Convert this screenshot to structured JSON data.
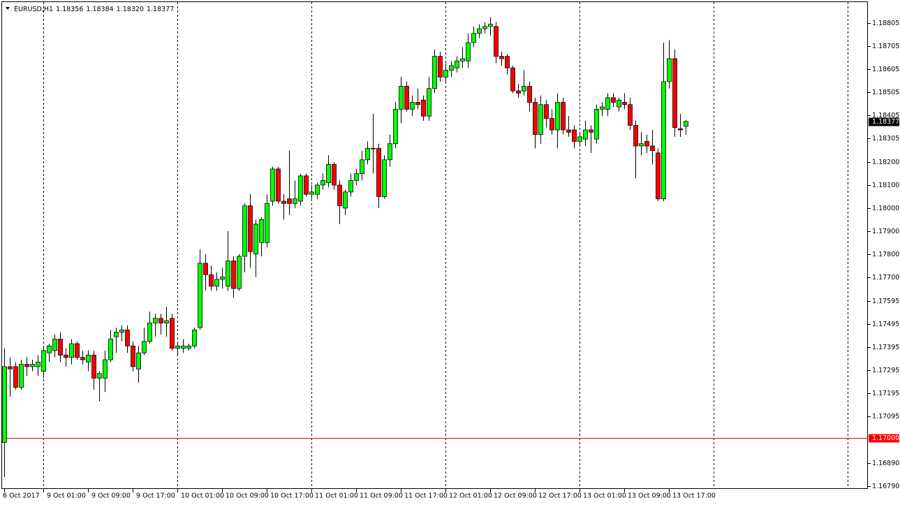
{
  "chart_data": {
    "type": "candlestick",
    "symbol": "EURUSD,H1",
    "header_values": [
      "1.18356",
      "1.18384",
      "1.18320",
      "1.18377"
    ],
    "categories": [
      "6 Oct 2017",
      null,
      null,
      null,
      null,
      null,
      null,
      "9 Oct 01:00",
      null,
      null,
      null,
      null,
      null,
      null,
      null,
      "9 Oct 09:00",
      null,
      null,
      null,
      null,
      null,
      null,
      null,
      "9 Oct 17:00",
      null,
      null,
      null,
      null,
      null,
      null,
      null,
      "10 Oct 01:00",
      null,
      null,
      null,
      null,
      null,
      null,
      null,
      "10 Oct 09:00",
      null,
      null,
      null,
      null,
      null,
      null,
      null,
      "10 Oct 17:00",
      null,
      null,
      null,
      null,
      null,
      null,
      null,
      "11 Oct 01:00",
      null,
      null,
      null,
      null,
      null,
      null,
      null,
      "11 Oct 09:00",
      null,
      null,
      null,
      null,
      null,
      null,
      null,
      "11 Oct 17:00",
      null,
      null,
      null,
      null,
      null,
      null,
      null,
      "12 Oct 01:00",
      null,
      null,
      null,
      null,
      null,
      null,
      null,
      "12 Oct 09:00",
      null,
      null,
      null,
      null,
      null,
      null,
      null,
      "12 Oct 17:00",
      null,
      null,
      null,
      null,
      null,
      null,
      null,
      "13 Oct 01:00",
      null,
      null,
      null,
      null,
      null,
      null,
      null,
      "13 Oct 09:00",
      null,
      null,
      null,
      null,
      null,
      null,
      null,
      "13 Oct 17:00",
      null,
      null,
      null
    ],
    "open": [
      1.1698,
      1.1731,
      1.1731,
      1.1722,
      1.1732,
      1.1731,
      1.1731,
      1.1729,
      1.1737,
      1.1738,
      1.1743,
      1.1736,
      1.1735,
      1.1741,
      1.1735,
      1.1733,
      1.1736,
      1.1726,
      1.1726,
      1.1734,
      1.1744,
      1.1746,
      1.1747,
      1.174,
      1.173,
      1.1737,
      1.1742,
      1.175,
      1.1752,
      1.175,
      1.1752,
      1.1739,
      1.1739,
      1.1739,
      1.174,
      1.1748,
      1.1776,
      1.1771,
      1.1766,
      1.1769,
      1.1766,
      1.1777,
      1.1765,
      1.1779,
      1.1801,
      1.178,
      1.1785,
      1.1785,
      1.1803,
      1.1817,
      1.1803,
      1.1804,
      1.1802,
      1.1803,
      1.1814,
      1.1806,
      1.1806,
      1.181,
      1.1811,
      1.1819,
      1.181,
      1.18,
      1.1807,
      1.1812,
      1.1815,
      1.1821,
      1.1826,
      1.1826,
      1.1805,
      1.1821,
      1.1828,
      1.1843,
      1.1853,
      1.1843,
      1.1846,
      1.1847,
      1.184,
      1.1852,
      1.1866,
      1.1857,
      1.186,
      1.1861,
      1.1864,
      1.1864,
      1.1872,
      1.1876,
      1.1878,
      1.1879,
      1.1879,
      1.1866,
      1.1866,
      1.1861,
      1.1851,
      1.1851,
      1.1853,
      1.1846,
      1.1832,
      1.1845,
      1.1839,
      1.1834,
      1.1846,
      1.1834,
      1.1834,
      1.1829,
      1.183,
      1.1834,
      1.183,
      1.1843,
      1.1843,
      1.1848,
      1.1844,
      1.1846,
      1.1845,
      1.1836,
      1.1827,
      1.1829,
      1.1827,
      1.1824,
      1.1804,
      1.1855,
      1.1865,
      1.18345,
      1.18356
    ],
    "high": [
      1.1739,
      1.1735,
      1.1733,
      1.1734,
      1.1735,
      1.1734,
      1.1736,
      1.174,
      1.1741,
      1.1745,
      1.1746,
      1.1739,
      1.1743,
      1.1742,
      1.1738,
      1.1738,
      1.1738,
      1.1729,
      1.1738,
      1.1747,
      1.1748,
      1.1749,
      1.1749,
      1.1742,
      1.174,
      1.1748,
      1.1755,
      1.1754,
      1.1754,
      1.1757,
      1.1754,
      1.1741,
      1.1743,
      1.1741,
      1.1748,
      1.1782,
      1.178,
      1.1775,
      1.1772,
      1.1774,
      1.179,
      1.1779,
      1.178,
      1.1802,
      1.1806,
      1.1795,
      1.1796,
      1.1806,
      1.1818,
      1.1818,
      1.1806,
      1.1825,
      1.1812,
      1.1815,
      1.1815,
      1.181,
      1.1811,
      1.1815,
      1.1823,
      1.182,
      1.1812,
      1.1808,
      1.1815,
      1.1817,
      1.1825,
      1.1829,
      1.1841,
      1.1828,
      1.1823,
      1.1832,
      1.1846,
      1.1857,
      1.1855,
      1.1849,
      1.1852,
      1.1849,
      1.1857,
      1.1869,
      1.1868,
      1.1863,
      1.1864,
      1.1866,
      1.187,
      1.1876,
      1.1879,
      1.188,
      1.1881,
      1.1883,
      1.1881,
      1.1868,
      1.1867,
      1.1862,
      1.1854,
      1.186,
      1.1855,
      1.1848,
      1.1849,
      1.1847,
      1.1843,
      1.185,
      1.1848,
      1.184,
      1.1836,
      1.1833,
      1.1838,
      1.1836,
      1.1845,
      1.1846,
      1.185,
      1.185,
      1.1848,
      1.185,
      1.1848,
      1.1838,
      1.1833,
      1.1832,
      1.1834,
      1.1826,
      1.1872,
      1.1873,
      1.1869,
      1.1841,
      1.18384
    ],
    "low": [
      1.1683,
      1.1718,
      1.1721,
      1.1721,
      1.1727,
      1.1729,
      1.1727,
      1.1726,
      1.1733,
      1.1735,
      1.1733,
      1.1731,
      1.1732,
      1.1734,
      1.1732,
      1.1729,
      1.1721,
      1.1716,
      1.172,
      1.1733,
      1.1737,
      1.1742,
      1.1737,
      1.1729,
      1.1724,
      1.1736,
      1.1741,
      1.1744,
      1.1745,
      1.1744,
      1.1738,
      1.1736,
      1.1737,
      1.1738,
      1.1739,
      1.1747,
      1.1764,
      1.1764,
      1.1764,
      1.1765,
      1.1764,
      1.1761,
      1.1764,
      1.1772,
      1.1774,
      1.177,
      1.1779,
      1.1783,
      1.1801,
      1.1802,
      1.1795,
      1.1797,
      1.18,
      1.1801,
      1.1805,
      1.1804,
      1.1804,
      1.1808,
      1.1809,
      1.1808,
      1.1793,
      1.1797,
      1.1805,
      1.181,
      1.1812,
      1.1819,
      1.1815,
      1.18,
      1.1804,
      1.1818,
      1.1826,
      1.1837,
      1.1842,
      1.184,
      1.1843,
      1.1838,
      1.1838,
      1.185,
      1.1855,
      1.1855,
      1.1857,
      1.1859,
      1.1861,
      1.1861,
      1.187,
      1.1874,
      1.1876,
      1.1875,
      1.1863,
      1.1862,
      1.1858,
      1.185,
      1.1848,
      1.1849,
      1.1842,
      1.1826,
      1.1828,
      1.1835,
      1.1832,
      1.1826,
      1.1832,
      1.1831,
      1.1826,
      1.1827,
      1.1827,
      1.1824,
      1.1828,
      1.184,
      1.184,
      1.1844,
      1.1842,
      1.1843,
      1.1834,
      1.1813,
      1.1823,
      1.1824,
      1.1819,
      1.1803,
      1.1803,
      1.1852,
      1.1831,
      1.1831,
      1.1832
    ],
    "close": [
      1.1731,
      1.173,
      1.1722,
      1.1732,
      1.1731,
      1.1732,
      1.1733,
      1.1738,
      1.174,
      1.1743,
      1.1736,
      1.1735,
      1.1741,
      1.1735,
      1.1734,
      1.1736,
      1.1726,
      1.1728,
      1.1734,
      1.1743,
      1.1746,
      1.1747,
      1.174,
      1.1731,
      1.1737,
      1.1742,
      1.175,
      1.1752,
      1.175,
      1.1751,
      1.1739,
      1.174,
      1.174,
      1.174,
      1.1747,
      1.1776,
      1.1771,
      1.1766,
      1.1769,
      1.177,
      1.1777,
      1.1765,
      1.1779,
      1.1801,
      1.1781,
      1.1793,
      1.1795,
      1.1802,
      1.1817,
      1.1803,
      1.1802,
      1.1802,
      1.1804,
      1.1814,
      1.1806,
      1.1807,
      1.181,
      1.1812,
      1.1819,
      1.181,
      1.1801,
      1.1807,
      1.1812,
      1.1815,
      1.1821,
      1.1826,
      1.1826,
      1.1805,
      1.1821,
      1.1828,
      1.1843,
      1.1853,
      1.1843,
      1.1846,
      1.1845,
      1.184,
      1.1852,
      1.1866,
      1.1857,
      1.186,
      1.1862,
      1.1864,
      1.1865,
      1.1872,
      1.1876,
      1.1878,
      1.1879,
      1.188,
      1.1866,
      1.1865,
      1.1861,
      1.1851,
      1.185,
      1.1853,
      1.1846,
      1.1832,
      1.1845,
      1.1839,
      1.1834,
      1.1846,
      1.1834,
      1.1833,
      1.1829,
      1.1831,
      1.1834,
      1.1833,
      1.1843,
      1.1844,
      1.1848,
      1.1846,
      1.1847,
      1.1845,
      1.1836,
      1.1827,
      1.1828,
      1.1827,
      1.1825,
      1.1804,
      1.1855,
      1.1865,
      1.1835,
      1.1834,
      1.18377
    ],
    "up_color": "#00ff00",
    "down_color": "#ff0000",
    "ylim": [
      1.16778,
      1.1889
    ],
    "yticks": [
      1.18805,
      1.18705,
      1.18605,
      1.18505,
      1.18405,
      1.18305,
      {
        "value": 1.182,
        "label": "1.18200"
      },
      {
        "value": 1.181,
        "label": "1.18100"
      },
      {
        "value": 1.18,
        "label": "1.18000"
      },
      {
        "value": 1.179,
        "label": "1.17900"
      },
      {
        "value": 1.178,
        "label": "1.17800"
      },
      {
        "value": 1.177,
        "label": "1.17700"
      },
      1.17595,
      1.17495,
      1.17395,
      1.17295,
      1.17195,
      1.17095,
      {
        "value": 1.1689,
        "label": "1.16890"
      },
      {
        "value": 1.1679,
        "label": "1.16790"
      }
    ],
    "price_line": {
      "value": 1.18377,
      "label": "1.18377"
    },
    "level_line": {
      "value": 1.17,
      "label": "1.17000",
      "color": "#ff0000"
    }
  }
}
